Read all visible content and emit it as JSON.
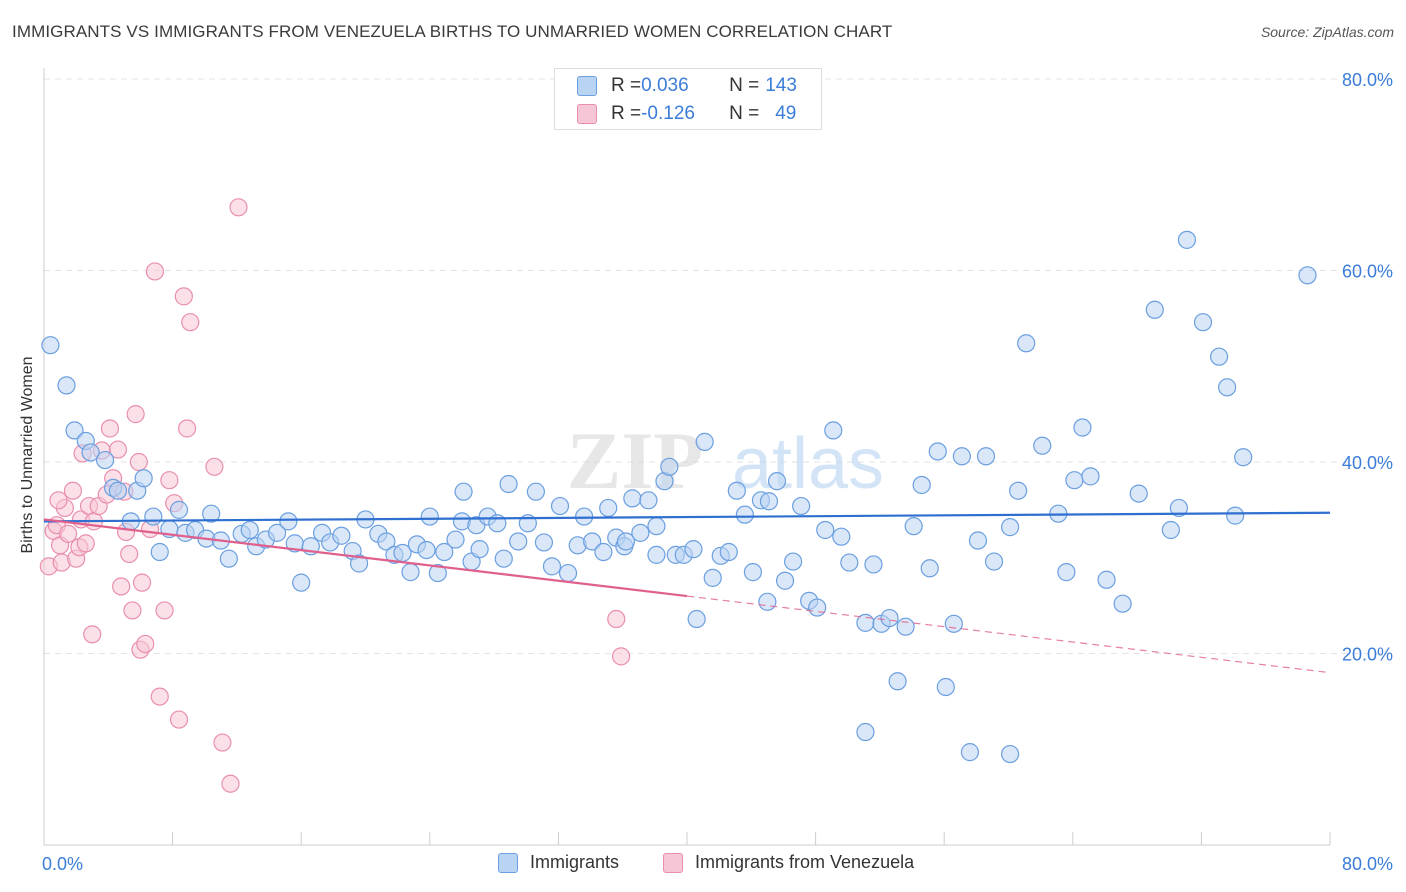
{
  "header": {
    "title": "IMMIGRANTS VS IMMIGRANTS FROM VENEZUELA BIRTHS TO UNMARRIED WOMEN CORRELATION CHART",
    "source": "Source: ZipAtlas.com"
  },
  "watermark": {
    "zip": "ZIP",
    "atlas": "atlas"
  },
  "legend_top": {
    "rows": [
      {
        "r_label": "R = ",
        "r_value": "0.036",
        "n_label": "N = ",
        "n_value": "143"
      },
      {
        "r_label": "R = ",
        "r_value": "-0.126",
        "n_label": "N = ",
        "n_value": "49"
      }
    ]
  },
  "colors": {
    "blue_fill": "#b9d3f3",
    "blue_stroke": "#6b9fe0",
    "blue_line": "#2e6fd0",
    "pink_fill": "#f7c6d6",
    "pink_stroke": "#e98fae",
    "pink_line": "#e0608d",
    "axis_text": "#3b7dd8",
    "grid": "#e3e3e3"
  },
  "chart_data": {
    "type": "scatter",
    "title": "IMMIGRANTS VS IMMIGRANTS FROM VENEZUELA BIRTHS TO UNMARRIED WOMEN CORRELATION CHART",
    "xlabel": "",
    "ylabel": "Births to Unmarried Women",
    "xlim": [
      0,
      80
    ],
    "ylim": [
      0,
      80
    ],
    "x_tick_labels": [
      "0.0%",
      "80.0%"
    ],
    "y_tick_labels": [
      "20.0%",
      "40.0%",
      "60.0%",
      "80.0%"
    ],
    "y_ticks": [
      20,
      40,
      60,
      80
    ],
    "grid": true,
    "legend_placement": "bottom-center",
    "series": [
      {
        "name": "Immigrants",
        "color": "#6b9fe0",
        "trend": {
          "x0": 0,
          "y0": 33.8,
          "x1": 80,
          "y1": 34.7
        },
        "points": [
          [
            0.4,
            52.2
          ],
          [
            1.4,
            48.0
          ],
          [
            1.9,
            43.3
          ],
          [
            2.6,
            42.2
          ],
          [
            2.9,
            41.0
          ],
          [
            3.8,
            40.2
          ],
          [
            4.3,
            37.3
          ],
          [
            4.6,
            37.0
          ],
          [
            5.4,
            33.8
          ],
          [
            5.8,
            37.0
          ],
          [
            6.2,
            38.3
          ],
          [
            6.8,
            34.3
          ],
          [
            7.2,
            30.6
          ],
          [
            7.8,
            33.0
          ],
          [
            8.4,
            35.0
          ],
          [
            8.8,
            32.6
          ],
          [
            9.4,
            32.9
          ],
          [
            10.1,
            32.0
          ],
          [
            10.4,
            34.6
          ],
          [
            11.0,
            31.8
          ],
          [
            11.5,
            29.9
          ],
          [
            12.3,
            32.5
          ],
          [
            12.8,
            32.9
          ],
          [
            13.2,
            31.2
          ],
          [
            13.8,
            31.9
          ],
          [
            14.5,
            32.6
          ],
          [
            15.2,
            33.8
          ],
          [
            15.6,
            31.5
          ],
          [
            16.0,
            27.4
          ],
          [
            16.6,
            31.2
          ],
          [
            17.3,
            32.6
          ],
          [
            17.8,
            31.6
          ],
          [
            18.5,
            32.3
          ],
          [
            19.2,
            30.7
          ],
          [
            19.6,
            29.4
          ],
          [
            20.0,
            34.0
          ],
          [
            20.8,
            32.5
          ],
          [
            21.3,
            31.7
          ],
          [
            21.8,
            30.3
          ],
          [
            22.3,
            30.5
          ],
          [
            22.8,
            28.5
          ],
          [
            23.2,
            31.4
          ],
          [
            23.8,
            30.8
          ],
          [
            24.0,
            34.3
          ],
          [
            24.5,
            28.4
          ],
          [
            24.9,
            30.6
          ],
          [
            25.6,
            31.9
          ],
          [
            26.0,
            33.8
          ],
          [
            26.6,
            29.6
          ],
          [
            26.9,
            33.4
          ],
          [
            27.6,
            34.3
          ],
          [
            28.2,
            33.6
          ],
          [
            28.6,
            29.9
          ],
          [
            28.9,
            37.7
          ],
          [
            29.5,
            31.7
          ],
          [
            30.1,
            33.6
          ],
          [
            30.6,
            36.9
          ],
          [
            31.1,
            31.6
          ],
          [
            31.6,
            29.1
          ],
          [
            32.1,
            35.4
          ],
          [
            32.6,
            28.4
          ],
          [
            33.2,
            31.3
          ],
          [
            33.6,
            34.3
          ],
          [
            34.1,
            31.7
          ],
          [
            34.8,
            30.6
          ],
          [
            35.1,
            35.2
          ],
          [
            35.6,
            32.1
          ],
          [
            36.1,
            31.2
          ],
          [
            36.6,
            36.2
          ],
          [
            37.1,
            32.6
          ],
          [
            37.6,
            36.0
          ],
          [
            38.1,
            33.3
          ],
          [
            38.6,
            38.0
          ],
          [
            38.9,
            39.5
          ],
          [
            39.3,
            30.3
          ],
          [
            39.8,
            30.3
          ],
          [
            40.4,
            30.9
          ],
          [
            40.6,
            23.6
          ],
          [
            41.1,
            42.1
          ],
          [
            41.6,
            27.9
          ],
          [
            42.1,
            30.2
          ],
          [
            42.6,
            30.6
          ],
          [
            43.1,
            37.0
          ],
          [
            43.6,
            34.5
          ],
          [
            44.1,
            28.5
          ],
          [
            44.6,
            36.0
          ],
          [
            45.1,
            35.9
          ],
          [
            45.6,
            38.0
          ],
          [
            46.1,
            27.6
          ],
          [
            46.6,
            29.6
          ],
          [
            47.1,
            35.4
          ],
          [
            47.6,
            25.5
          ],
          [
            48.1,
            24.8
          ],
          [
            48.6,
            32.9
          ],
          [
            49.1,
            43.3
          ],
          [
            49.6,
            32.2
          ],
          [
            50.1,
            29.5
          ],
          [
            51.1,
            23.2
          ],
          [
            51.6,
            29.3
          ],
          [
            52.1,
            23.1
          ],
          [
            52.6,
            23.7
          ],
          [
            53.1,
            17.1
          ],
          [
            53.6,
            22.8
          ],
          [
            54.1,
            33.3
          ],
          [
            54.6,
            37.6
          ],
          [
            55.1,
            28.9
          ],
          [
            55.6,
            41.1
          ],
          [
            56.1,
            16.5
          ],
          [
            56.6,
            23.1
          ],
          [
            57.1,
            40.6
          ],
          [
            58.1,
            31.8
          ],
          [
            58.6,
            40.6
          ],
          [
            59.1,
            29.6
          ],
          [
            60.1,
            33.2
          ],
          [
            60.6,
            37.0
          ],
          [
            61.1,
            52.4
          ],
          [
            62.1,
            41.7
          ],
          [
            63.1,
            34.6
          ],
          [
            63.6,
            28.5
          ],
          [
            64.1,
            38.1
          ],
          [
            64.6,
            43.6
          ],
          [
            65.1,
            38.5
          ],
          [
            66.1,
            27.7
          ],
          [
            67.1,
            25.2
          ],
          [
            68.1,
            36.7
          ],
          [
            69.1,
            55.9
          ],
          [
            70.1,
            32.9
          ],
          [
            70.6,
            35.2
          ],
          [
            71.1,
            63.2
          ],
          [
            72.1,
            54.6
          ],
          [
            73.1,
            51.0
          ],
          [
            73.6,
            47.8
          ],
          [
            74.1,
            34.4
          ],
          [
            74.6,
            40.5
          ],
          [
            78.6,
            59.5
          ],
          [
            51.1,
            11.8
          ],
          [
            57.6,
            9.7
          ],
          [
            60.1,
            9.5
          ],
          [
            38.1,
            30.3
          ],
          [
            36.2,
            31.7
          ],
          [
            45.0,
            25.4
          ],
          [
            26.1,
            36.9
          ],
          [
            27.1,
            30.9
          ]
        ]
      },
      {
        "name": "Immigrants from Venezuela",
        "color": "#e98fae",
        "trend": {
          "x0": 0,
          "y0": 34.0,
          "x1": 40,
          "y1": 26.0
        },
        "trend_dashed": {
          "x0": 40,
          "y0": 26.0,
          "x1": 80,
          "y1": 18.0
        },
        "points": [
          [
            0.3,
            29.1
          ],
          [
            0.6,
            32.8
          ],
          [
            0.8,
            33.4
          ],
          [
            1.0,
            31.3
          ],
          [
            1.1,
            29.5
          ],
          [
            1.3,
            35.2
          ],
          [
            1.5,
            32.5
          ],
          [
            1.8,
            37.0
          ],
          [
            2.0,
            29.9
          ],
          [
            2.2,
            31.1
          ],
          [
            2.3,
            34.0
          ],
          [
            2.6,
            31.5
          ],
          [
            2.8,
            35.4
          ],
          [
            3.0,
            22.0
          ],
          [
            3.1,
            33.8
          ],
          [
            3.4,
            35.4
          ],
          [
            3.6,
            41.2
          ],
          [
            3.9,
            36.6
          ],
          [
            4.1,
            43.5
          ],
          [
            4.3,
            38.3
          ],
          [
            4.6,
            41.3
          ],
          [
            4.8,
            27.0
          ],
          [
            5.0,
            36.9
          ],
          [
            5.1,
            32.7
          ],
          [
            5.3,
            30.4
          ],
          [
            5.5,
            24.5
          ],
          [
            5.7,
            45.0
          ],
          [
            5.9,
            40.0
          ],
          [
            6.0,
            20.4
          ],
          [
            6.1,
            27.4
          ],
          [
            6.3,
            21.0
          ],
          [
            6.6,
            33.0
          ],
          [
            6.9,
            59.9
          ],
          [
            7.2,
            15.5
          ],
          [
            7.5,
            24.5
          ],
          [
            7.8,
            38.1
          ],
          [
            8.1,
            35.7
          ],
          [
            8.4,
            13.1
          ],
          [
            8.7,
            57.3
          ],
          [
            8.9,
            43.5
          ],
          [
            9.1,
            54.6
          ],
          [
            10.6,
            39.5
          ],
          [
            11.1,
            10.7
          ],
          [
            11.6,
            6.4
          ],
          [
            12.1,
            66.6
          ],
          [
            35.6,
            23.6
          ],
          [
            35.9,
            19.7
          ],
          [
            0.9,
            36.0
          ],
          [
            2.4,
            40.9
          ]
        ]
      }
    ]
  }
}
